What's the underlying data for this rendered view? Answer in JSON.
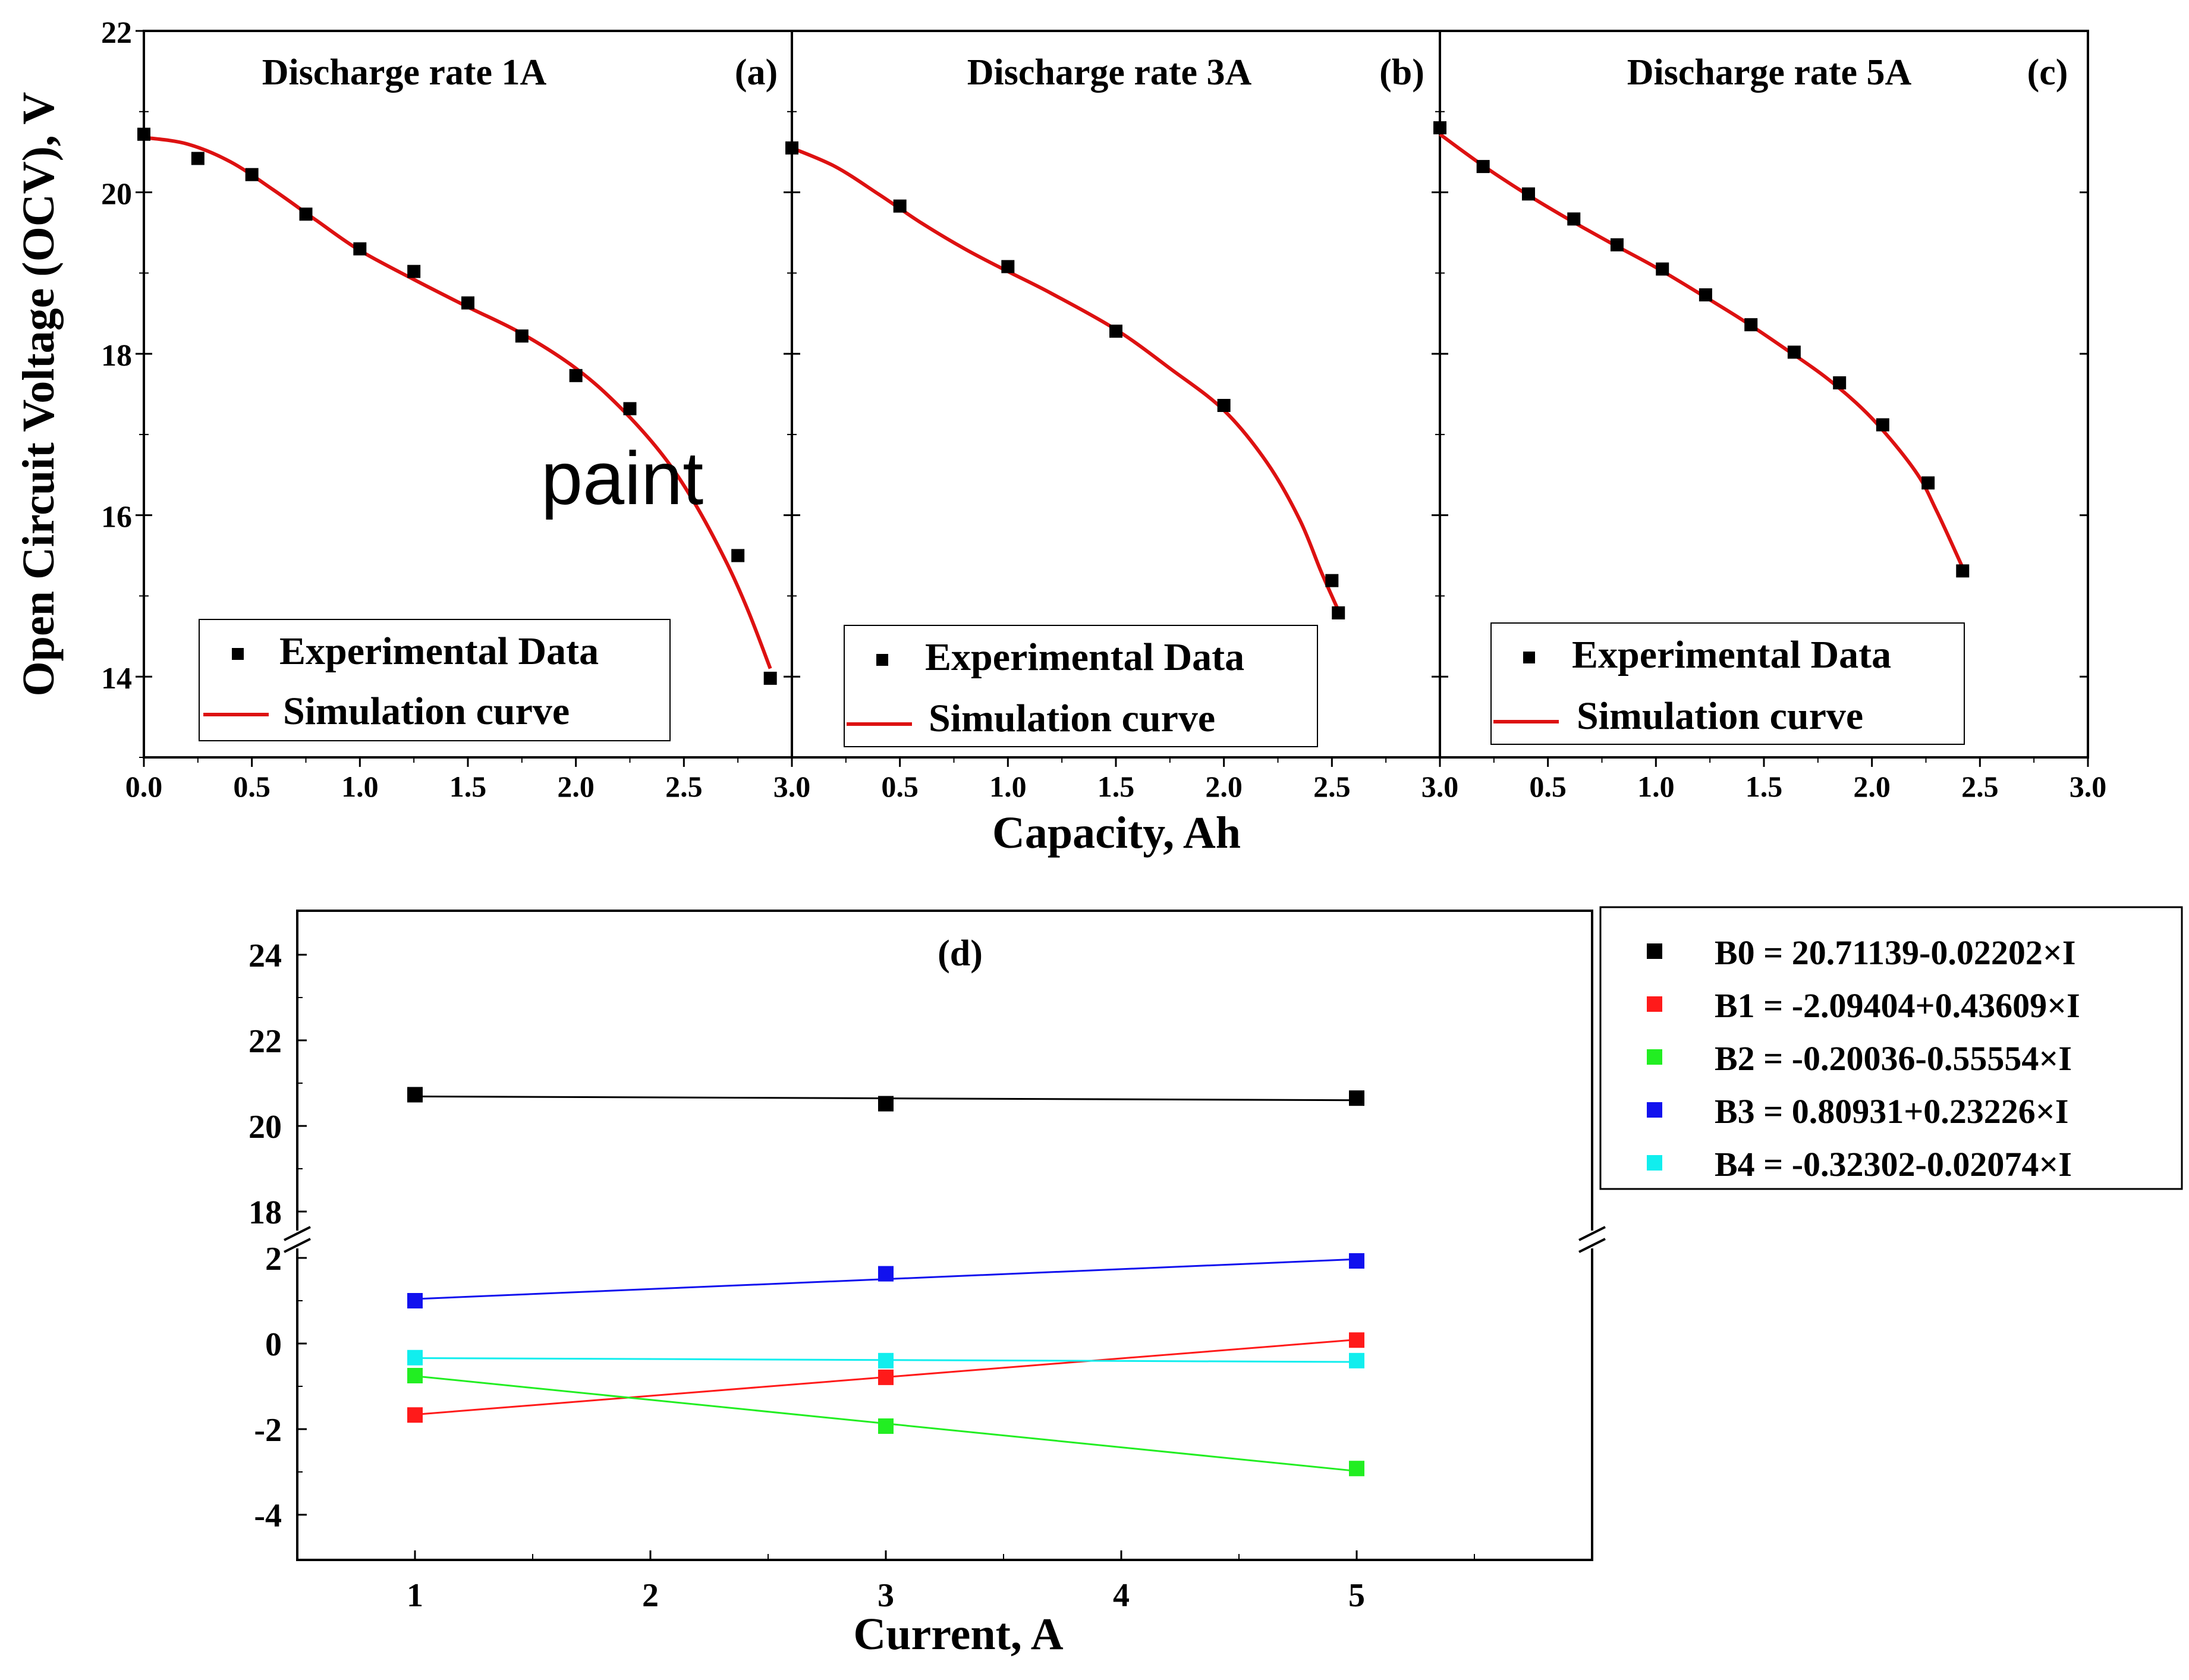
{
  "figure": {
    "overlay_text": "paint",
    "top_xlabel": "Capacity, Ah",
    "top_ylabel": "Open Circuit Voltage (OCV), V"
  },
  "chart_data": [
    {
      "type": "scatter",
      "panel": "a",
      "title": "Discharge rate 1A",
      "panel_label": "(a)",
      "xlim": [
        0,
        3
      ],
      "ylim": [
        13,
        22
      ],
      "xticks": [
        "0.0",
        "0.5",
        "1.0",
        "1.5",
        "2.0",
        "2.5",
        "3.0"
      ],
      "yticks": [
        "14",
        "16",
        "18",
        "20",
        "22"
      ],
      "legend": {
        "position": "bottom-left",
        "entries": [
          "Experimental Data",
          "Simulation curve"
        ]
      },
      "series": [
        {
          "name": "Experimental Data",
          "kind": "points",
          "x": [
            0.0,
            0.25,
            0.5,
            0.75,
            1.0,
            1.25,
            1.5,
            1.75,
            2.0,
            2.25,
            2.75,
            2.9
          ],
          "y": [
            20.72,
            20.42,
            20.22,
            19.73,
            19.3,
            19.02,
            18.63,
            18.22,
            17.73,
            17.32,
            15.5,
            13.98
          ]
        },
        {
          "name": "Simulation curve",
          "kind": "line",
          "color": "#dd1111",
          "x": [
            0.0,
            0.2,
            0.4,
            0.6,
            0.8,
            1.0,
            1.25,
            1.5,
            1.75,
            2.0,
            2.2,
            2.4,
            2.55,
            2.7,
            2.8,
            2.9
          ],
          "y": [
            20.68,
            20.6,
            20.38,
            20.03,
            19.65,
            19.28,
            18.92,
            18.58,
            18.25,
            17.82,
            17.35,
            16.75,
            16.15,
            15.4,
            14.8,
            14.1
          ]
        }
      ]
    },
    {
      "type": "scatter",
      "panel": "b",
      "title": "Discharge rate 3A",
      "panel_label": "(b)",
      "xlim": [
        0,
        3
      ],
      "ylim": [
        13,
        22
      ],
      "xticks": [
        "0.5",
        "1.0",
        "1.5",
        "2.0",
        "2.5",
        "3.0"
      ],
      "legend": {
        "position": "bottom-left",
        "entries": [
          "Experimental Data",
          "Simulation curve"
        ]
      },
      "series": [
        {
          "name": "Experimental Data",
          "kind": "points",
          "x": [
            0.0,
            0.5,
            1.0,
            1.5,
            2.0,
            2.5,
            2.53
          ],
          "y": [
            20.55,
            19.83,
            19.08,
            18.28,
            17.36,
            15.19,
            14.79
          ]
        },
        {
          "name": "Simulation curve",
          "kind": "line",
          "color": "#dd1111",
          "x": [
            0.0,
            0.2,
            0.4,
            0.6,
            0.8,
            1.0,
            1.2,
            1.5,
            1.75,
            2.0,
            2.2,
            2.35,
            2.45,
            2.53
          ],
          "y": [
            20.55,
            20.32,
            19.98,
            19.62,
            19.3,
            19.02,
            18.75,
            18.3,
            17.82,
            17.3,
            16.65,
            15.95,
            15.3,
            14.82
          ]
        }
      ]
    },
    {
      "type": "scatter",
      "panel": "c",
      "title": "Discharge rate 5A",
      "panel_label": "(c)",
      "xlim": [
        0,
        3
      ],
      "ylim": [
        13,
        22
      ],
      "xticks": [
        "0.5",
        "1.0",
        "1.5",
        "2.0",
        "2.5",
        "3.0"
      ],
      "legend": {
        "position": "bottom-left",
        "entries": [
          "Experimental Data",
          "Simulation curve"
        ]
      },
      "series": [
        {
          "name": "Experimental Data",
          "kind": "points",
          "x": [
            0.0,
            0.2,
            0.41,
            0.62,
            0.82,
            1.03,
            1.23,
            1.44,
            1.64,
            1.85,
            2.05,
            2.26,
            2.42
          ],
          "y": [
            20.8,
            20.32,
            19.98,
            19.67,
            19.35,
            19.05,
            18.73,
            18.36,
            18.02,
            17.64,
            17.12,
            16.4,
            15.31
          ]
        },
        {
          "name": "Simulation curve",
          "kind": "line",
          "color": "#dd1111",
          "x": [
            0.0,
            0.2,
            0.4,
            0.6,
            0.8,
            1.0,
            1.2,
            1.4,
            1.6,
            1.8,
            2.0,
            2.2,
            2.3,
            2.42
          ],
          "y": [
            20.72,
            20.33,
            19.98,
            19.66,
            19.36,
            19.07,
            18.75,
            18.42,
            18.06,
            17.68,
            17.2,
            16.55,
            16.05,
            15.35
          ]
        }
      ]
    },
    {
      "type": "scatter",
      "panel": "d",
      "panel_label": "(d)",
      "xlabel": "Current, A",
      "xlim": [
        0.5,
        6
      ],
      "ylim_upper": [
        17,
        25
      ],
      "ylim_lower": [
        -5,
        2.5
      ],
      "axis_break": true,
      "xticks": [
        "1",
        "2",
        "3",
        "4",
        "5"
      ],
      "yticks_upper": [
        "18",
        "20",
        "22",
        "24"
      ],
      "yticks_lower": [
        "-4",
        "-2",
        "0",
        "2"
      ],
      "legend": {
        "position": "outside-right"
      },
      "series": [
        {
          "name": "B0 = 20.71139-0.02202×I",
          "color": "#000000",
          "x": [
            1,
            3,
            5
          ],
          "y": [
            20.73,
            20.52,
            20.65
          ],
          "fit": [
            20.69,
            20.6
          ]
        },
        {
          "name": "B1 = -2.09404+0.43609×I",
          "color": "#ff1a1a",
          "x": [
            1,
            3,
            5
          ],
          "y": [
            -1.67,
            -0.79,
            0.08
          ],
          "fit": [
            -1.66,
            0.09
          ]
        },
        {
          "name": "B2 = -0.20036-0.55554×I",
          "color": "#22ee22",
          "x": [
            1,
            3,
            5
          ],
          "y": [
            -0.75,
            -1.93,
            -2.92
          ],
          "fit": [
            -0.76,
            -2.98
          ]
        },
        {
          "name": "B3 =  0.80931+0.23226×I",
          "color": "#1111ee",
          "x": [
            1,
            3,
            5
          ],
          "y": [
            1.0,
            1.63,
            1.93
          ],
          "fit": [
            1.04,
            1.97
          ]
        },
        {
          "name": "B4 = -0.32302-0.02074×I",
          "color": "#11eeee",
          "x": [
            1,
            3,
            5
          ],
          "y": [
            -0.33,
            -0.4,
            -0.4
          ],
          "fit": [
            -0.34,
            -0.43
          ]
        }
      ]
    }
  ]
}
